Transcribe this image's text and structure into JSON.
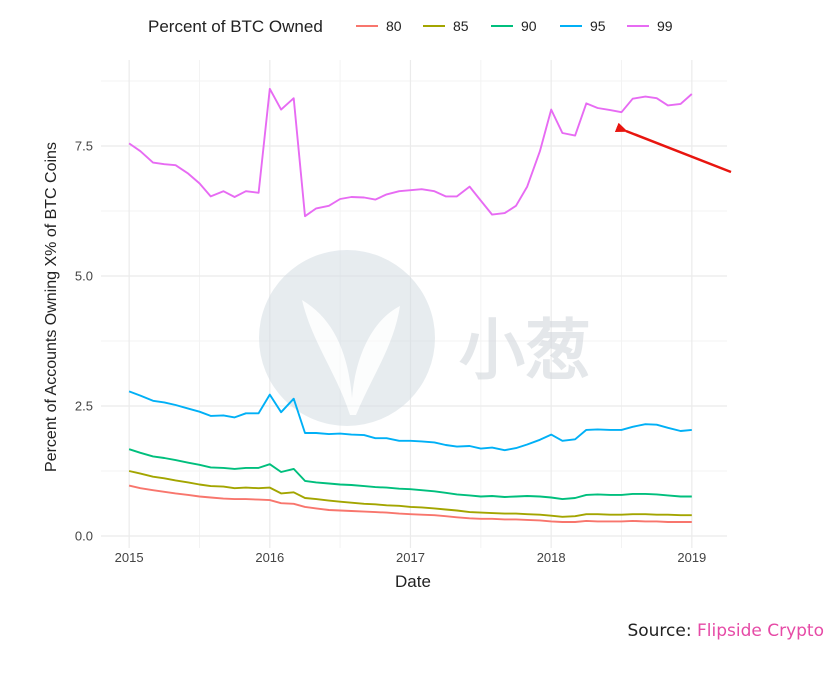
{
  "chart_data": {
    "type": "line",
    "title": "",
    "xlabel": "Date",
    "ylabel": "Percent of Accounts Owning X% of BTC Coins",
    "legend_title": "Percent of BTC Owned",
    "legend_position": "top",
    "xlim": [
      2014.8,
      2019.25
    ],
    "ylim": [
      0,
      8.6
    ],
    "x_ticks": [
      2015,
      2016,
      2017,
      2018,
      2019
    ],
    "x_tick_labels": [
      "2015",
      "2016",
      "2017",
      "2018",
      "2019"
    ],
    "y_ticks": [
      0,
      2.5,
      5,
      7.5
    ],
    "y_tick_labels": [
      "0.0",
      "2.5",
      "5.0",
      "7.5"
    ],
    "grid": true,
    "x": [
      2015.0,
      2015.08,
      2015.17,
      2015.25,
      2015.33,
      2015.42,
      2015.5,
      2015.58,
      2015.67,
      2015.75,
      2015.83,
      2015.92,
      2016.0,
      2016.08,
      2016.17,
      2016.25,
      2016.33,
      2016.42,
      2016.5,
      2016.58,
      2016.67,
      2016.75,
      2016.83,
      2016.92,
      2017.0,
      2017.08,
      2017.17,
      2017.25,
      2017.33,
      2017.42,
      2017.5,
      2017.58,
      2017.67,
      2017.75,
      2017.83,
      2017.92,
      2018.0,
      2018.08,
      2018.17,
      2018.25,
      2018.33,
      2018.42,
      2018.5,
      2018.58,
      2018.67,
      2018.75,
      2018.83,
      2018.92,
      2019.0
    ],
    "series": [
      {
        "name": "80",
        "color": "#f8766d",
        "values": [
          0.97,
          0.92,
          0.88,
          0.85,
          0.82,
          0.79,
          0.76,
          0.74,
          0.72,
          0.71,
          0.71,
          0.7,
          0.69,
          0.63,
          0.62,
          0.56,
          0.53,
          0.5,
          0.49,
          0.48,
          0.47,
          0.46,
          0.45,
          0.43,
          0.42,
          0.41,
          0.4,
          0.38,
          0.36,
          0.34,
          0.33,
          0.33,
          0.32,
          0.32,
          0.31,
          0.3,
          0.28,
          0.27,
          0.27,
          0.29,
          0.28,
          0.28,
          0.28,
          0.29,
          0.28,
          0.28,
          0.27,
          0.27,
          0.27
        ]
      },
      {
        "name": "85",
        "color": "#a3a500",
        "values": [
          1.25,
          1.2,
          1.14,
          1.11,
          1.07,
          1.03,
          0.99,
          0.96,
          0.95,
          0.92,
          0.93,
          0.92,
          0.93,
          0.82,
          0.84,
          0.73,
          0.71,
          0.68,
          0.66,
          0.64,
          0.62,
          0.61,
          0.59,
          0.58,
          0.56,
          0.55,
          0.53,
          0.51,
          0.49,
          0.46,
          0.45,
          0.44,
          0.43,
          0.43,
          0.42,
          0.41,
          0.39,
          0.37,
          0.38,
          0.42,
          0.42,
          0.41,
          0.41,
          0.42,
          0.42,
          0.41,
          0.41,
          0.4,
          0.4
        ]
      },
      {
        "name": "90",
        "color": "#00bf7d",
        "values": [
          1.67,
          1.6,
          1.53,
          1.5,
          1.46,
          1.41,
          1.37,
          1.32,
          1.31,
          1.29,
          1.31,
          1.31,
          1.38,
          1.23,
          1.29,
          1.06,
          1.03,
          1.01,
          0.99,
          0.98,
          0.96,
          0.94,
          0.93,
          0.91,
          0.9,
          0.88,
          0.86,
          0.83,
          0.8,
          0.78,
          0.76,
          0.77,
          0.75,
          0.76,
          0.77,
          0.76,
          0.74,
          0.71,
          0.73,
          0.79,
          0.8,
          0.79,
          0.79,
          0.81,
          0.81,
          0.8,
          0.78,
          0.76,
          0.76
        ]
      },
      {
        "name": "95",
        "color": "#00b0f6",
        "values": [
          2.78,
          2.7,
          2.6,
          2.57,
          2.52,
          2.45,
          2.39,
          2.31,
          2.32,
          2.28,
          2.36,
          2.36,
          2.72,
          2.38,
          2.64,
          1.98,
          1.98,
          1.96,
          1.97,
          1.95,
          1.94,
          1.88,
          1.88,
          1.83,
          1.83,
          1.82,
          1.8,
          1.75,
          1.72,
          1.73,
          1.68,
          1.7,
          1.65,
          1.69,
          1.76,
          1.85,
          1.95,
          1.83,
          1.86,
          2.04,
          2.05,
          2.04,
          2.04,
          2.1,
          2.15,
          2.14,
          2.08,
          2.02,
          2.04
        ]
      },
      {
        "name": "99",
        "color": "#e76bf3",
        "values": [
          7.55,
          7.4,
          7.18,
          7.15,
          7.13,
          6.97,
          6.78,
          6.53,
          6.63,
          6.52,
          6.63,
          6.6,
          8.6,
          8.2,
          8.42,
          6.15,
          6.3,
          6.35,
          6.48,
          6.52,
          6.51,
          6.47,
          6.57,
          6.63,
          6.65,
          6.67,
          6.63,
          6.53,
          6.53,
          6.72,
          6.45,
          6.18,
          6.21,
          6.35,
          6.72,
          7.4,
          8.2,
          7.75,
          7.7,
          8.32,
          8.23,
          8.19,
          8.15,
          8.41,
          8.45,
          8.42,
          8.28,
          8.31,
          8.5
        ]
      }
    ]
  },
  "watermark": {
    "text": "小葱"
  },
  "source": {
    "prefix": "Source: ",
    "brand": "Flipside Crypto"
  },
  "colors": {
    "annotation_arrow": "#e8150f",
    "brand": "#e64aa6",
    "panel_grid": "#ebebeb"
  }
}
